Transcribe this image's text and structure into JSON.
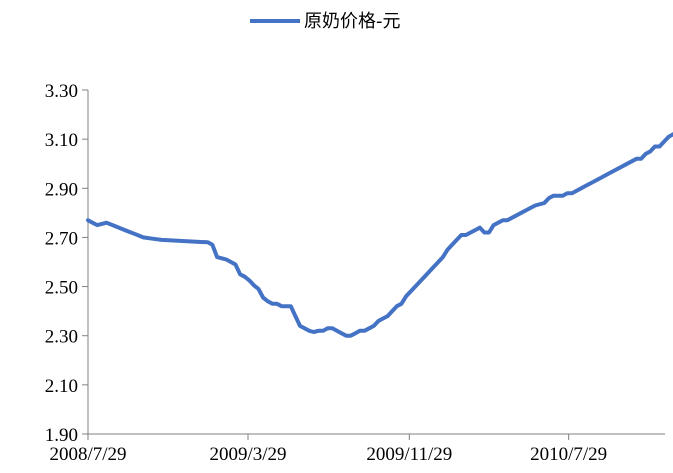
{
  "chart_data": {
    "type": "line",
    "title": "",
    "xlabel": "",
    "ylabel": "",
    "ylim": [
      1.9,
      3.3
    ],
    "yticks": [
      "1.90",
      "2.10",
      "2.30",
      "2.50",
      "2.70",
      "2.90",
      "3.10",
      "3.30"
    ],
    "xticks": [
      "2008/7/29",
      "2009/3/29",
      "2009/11/29",
      "2010/7/29"
    ],
    "grid": false,
    "legend": "top-center",
    "series": [
      {
        "name": "原奶价格-元",
        "color": "#4472C4",
        "points": [
          [
            "2008-07-29",
            2.77
          ],
          [
            "2008-08-05",
            2.76
          ],
          [
            "2008-08-12",
            2.75
          ],
          [
            "2008-08-19",
            2.755
          ],
          [
            "2008-08-26",
            2.76
          ],
          [
            "2008-09-09",
            2.745
          ],
          [
            "2008-09-23",
            2.73
          ],
          [
            "2008-10-07",
            2.715
          ],
          [
            "2008-10-21",
            2.7
          ],
          [
            "2008-11-04",
            2.695
          ],
          [
            "2008-11-18",
            2.69
          ],
          [
            "2008-12-02",
            2.688
          ],
          [
            "2008-12-16",
            2.686
          ],
          [
            "2008-12-30",
            2.684
          ],
          [
            "2009-01-13",
            2.682
          ],
          [
            "2009-01-27",
            2.68
          ],
          [
            "2009-02-03",
            2.67
          ],
          [
            "2009-02-10",
            2.62
          ],
          [
            "2009-02-17",
            2.615
          ],
          [
            "2009-02-24",
            2.61
          ],
          [
            "2009-03-03",
            2.6
          ],
          [
            "2009-03-10",
            2.59
          ],
          [
            "2009-03-17",
            2.55
          ],
          [
            "2009-03-24",
            2.54
          ],
          [
            "2009-03-31",
            2.525
          ],
          [
            "2009-04-07",
            2.505
          ],
          [
            "2009-04-14",
            2.49
          ],
          [
            "2009-04-21",
            2.455
          ],
          [
            "2009-04-28",
            2.44
          ],
          [
            "2009-05-05",
            2.43
          ],
          [
            "2009-05-12",
            2.43
          ],
          [
            "2009-05-19",
            2.42
          ],
          [
            "2009-05-26",
            2.42
          ],
          [
            "2009-06-02",
            2.42
          ],
          [
            "2009-06-09",
            2.38
          ],
          [
            "2009-06-16",
            2.34
          ],
          [
            "2009-06-23",
            2.33
          ],
          [
            "2009-06-30",
            2.32
          ],
          [
            "2009-07-07",
            2.315
          ],
          [
            "2009-07-14",
            2.32
          ],
          [
            "2009-07-21",
            2.32
          ],
          [
            "2009-07-28",
            2.33
          ],
          [
            "2009-08-04",
            2.33
          ],
          [
            "2009-08-11",
            2.32
          ],
          [
            "2009-08-18",
            2.31
          ],
          [
            "2009-08-25",
            2.3
          ],
          [
            "2009-09-01",
            2.3
          ],
          [
            "2009-09-08",
            2.31
          ],
          [
            "2009-09-15",
            2.32
          ],
          [
            "2009-09-22",
            2.32
          ],
          [
            "2009-09-29",
            2.33
          ],
          [
            "2009-10-06",
            2.34
          ],
          [
            "2009-10-13",
            2.36
          ],
          [
            "2009-10-20",
            2.37
          ],
          [
            "2009-10-27",
            2.38
          ],
          [
            "2009-11-03",
            2.4
          ],
          [
            "2009-11-10",
            2.42
          ],
          [
            "2009-11-17",
            2.43
          ],
          [
            "2009-11-24",
            2.46
          ],
          [
            "2009-12-08",
            2.5
          ],
          [
            "2009-12-22",
            2.54
          ],
          [
            "2010-01-05",
            2.58
          ],
          [
            "2010-01-19",
            2.62
          ],
          [
            "2010-01-26",
            2.65
          ],
          [
            "2010-02-02",
            2.67
          ],
          [
            "2010-02-09",
            2.69
          ],
          [
            "2010-02-16",
            2.71
          ],
          [
            "2010-02-23",
            2.71
          ],
          [
            "2010-03-02",
            2.72
          ],
          [
            "2010-03-09",
            2.73
          ],
          [
            "2010-03-16",
            2.74
          ],
          [
            "2010-03-23",
            2.72
          ],
          [
            "2010-03-30",
            2.72
          ],
          [
            "2010-04-06",
            2.75
          ],
          [
            "2010-04-13",
            2.76
          ],
          [
            "2010-04-20",
            2.77
          ],
          [
            "2010-04-27",
            2.77
          ],
          [
            "2010-05-11",
            2.79
          ],
          [
            "2010-05-25",
            2.81
          ],
          [
            "2010-06-08",
            2.83
          ],
          [
            "2010-06-22",
            2.84
          ],
          [
            "2010-06-29",
            2.86
          ],
          [
            "2010-07-06",
            2.87
          ],
          [
            "2010-07-13",
            2.87
          ],
          [
            "2010-07-20",
            2.87
          ],
          [
            "2010-07-27",
            2.88
          ],
          [
            "2010-08-03",
            2.88
          ],
          [
            "2010-08-10",
            2.89
          ],
          [
            "2010-08-17",
            2.9
          ],
          [
            "2010-08-24",
            2.91
          ],
          [
            "2010-08-31",
            2.92
          ],
          [
            "2010-09-14",
            2.94
          ],
          [
            "2010-09-28",
            2.96
          ],
          [
            "2010-10-12",
            2.98
          ],
          [
            "2010-10-26",
            3.0
          ],
          [
            "2010-11-09",
            3.02
          ],
          [
            "2010-11-16",
            3.02
          ],
          [
            "2010-11-23",
            3.04
          ],
          [
            "2010-11-30",
            3.05
          ],
          [
            "2010-12-07",
            3.07
          ],
          [
            "2010-12-14",
            3.07
          ],
          [
            "2010-12-21",
            3.09
          ],
          [
            "2010-12-28",
            3.11
          ],
          [
            "2011-01-04",
            3.12
          ],
          [
            "2011-01-11",
            3.13
          ],
          [
            "2011-01-18",
            3.13
          ]
        ]
      }
    ]
  }
}
